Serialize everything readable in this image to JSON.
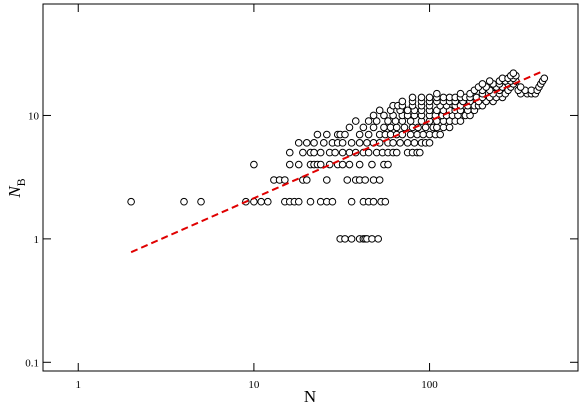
{
  "chart_data": {
    "type": "scatter",
    "xlabel": "N",
    "ylabel": "N",
    "ylabel_sub": "B",
    "xscale": "log",
    "yscale": "log",
    "xlim": [
      0.63,
      700
    ],
    "ylim": [
      0.085,
      80
    ],
    "xticks": [
      1,
      10,
      100
    ],
    "yticks": [
      0.1,
      1,
      10
    ],
    "series": [
      {
        "type": "scatter",
        "color": "#000000",
        "x": [
          31,
          33,
          36,
          40,
          42,
          43,
          44,
          47,
          51,
          2,
          4,
          5,
          9,
          10,
          11,
          12,
          15,
          16,
          17,
          18,
          21,
          24,
          26,
          28,
          36,
          42,
          45,
          48,
          53,
          56,
          13,
          14,
          15,
          19,
          20,
          26,
          34,
          38,
          40,
          43,
          48,
          52,
          10,
          16,
          18,
          21,
          22,
          23,
          24,
          27,
          30,
          32,
          35,
          40,
          47,
          55,
          58,
          16,
          19,
          21,
          22,
          24,
          27,
          29,
          32,
          35,
          38,
          42,
          45,
          50,
          54,
          58,
          62,
          65,
          75,
          80,
          85,
          88,
          18,
          20,
          22,
          25,
          28,
          30,
          32,
          36,
          40,
          44,
          48,
          52,
          58,
          62,
          68,
          75,
          82,
          90,
          95,
          100,
          23,
          26,
          30,
          31,
          33,
          40,
          45,
          52,
          56,
          60,
          65,
          70,
          78,
          85,
          92,
          100,
          108,
          115,
          35,
          42,
          48,
          55,
          60,
          65,
          72,
          80,
          86,
          95,
          105,
          110,
          120,
          130,
          38,
          45,
          50,
          58,
          64,
          70,
          78,
          90,
          100,
          110,
          120,
          130,
          140,
          150,
          48,
          55,
          62,
          70,
          75,
          82,
          90,
          100,
          108,
          118,
          125,
          135,
          145,
          160,
          170,
          52,
          60,
          68,
          75,
          82,
          90,
          100,
          110,
          120,
          130,
          140,
          150,
          165,
          180,
          62,
          66,
          70,
          80,
          90,
          100,
          115,
          125,
          140,
          150,
          165,
          180,
          190,
          200,
          70,
          80,
          90,
          100,
          110,
          120,
          130,
          140,
          155,
          170,
          190,
          210,
          230,
          80,
          90,
          100,
          110,
          120,
          130,
          140,
          150,
          160,
          170,
          185,
          200,
          220,
          240,
          260,
          110,
          150,
          170,
          200,
          230,
          250,
          270,
          330,
          360,
          380,
          400,
          180,
          200,
          220,
          250,
          280,
          320,
          350,
          380,
          410,
          190,
          210,
          240,
          260,
          290,
          330,
          420,
          200,
          230,
          250,
          280,
          300,
          430,
          220,
          250,
          270,
          290,
          310,
          440,
          260,
          280,
          300,
          450,
          290,
          310,
          300
        ],
        "values": [
          1,
          1,
          1,
          1,
          1,
          1,
          1,
          1,
          1,
          2,
          2,
          2,
          2,
          2,
          2,
          2,
          2,
          2,
          2,
          2,
          2,
          2,
          2,
          2,
          2,
          2,
          2,
          2,
          2,
          2,
          3,
          3,
          3,
          3,
          3,
          3,
          3,
          3,
          3,
          3,
          3,
          3,
          4,
          4,
          4,
          4,
          4,
          4,
          4,
          4,
          4,
          4,
          4,
          4,
          4,
          4,
          4,
          5,
          5,
          5,
          5,
          5,
          5,
          5,
          5,
          5,
          5,
          5,
          5,
          5,
          5,
          5,
          5,
          5,
          5,
          5,
          5,
          5,
          6,
          6,
          6,
          6,
          6,
          6,
          6,
          6,
          6,
          6,
          6,
          6,
          6,
          6,
          6,
          6,
          6,
          6,
          6,
          6,
          7,
          7,
          7,
          7,
          7,
          7,
          7,
          7,
          7,
          7,
          7,
          7,
          7,
          7,
          7,
          7,
          7,
          7,
          8,
          8,
          8,
          8,
          8,
          8,
          8,
          8,
          8,
          8,
          8,
          8,
          8,
          8,
          9,
          9,
          9,
          9,
          9,
          9,
          9,
          9,
          9,
          9,
          9,
          9,
          9,
          9,
          10,
          10,
          10,
          10,
          10,
          10,
          10,
          10,
          10,
          10,
          10,
          10,
          10,
          10,
          10,
          11,
          11,
          11,
          11,
          11,
          11,
          11,
          11,
          11,
          11,
          11,
          11,
          11,
          11,
          12,
          12,
          12,
          12,
          12,
          12,
          12,
          12,
          12,
          12,
          12,
          12,
          12,
          12,
          13,
          13,
          13,
          13,
          13,
          13,
          13,
          13,
          13,
          13,
          13,
          13,
          13,
          14,
          14,
          14,
          14,
          14,
          14,
          14,
          14,
          14,
          14,
          14,
          14,
          14,
          14,
          14,
          15,
          15,
          15,
          15,
          15,
          15,
          15,
          15,
          15,
          15,
          15,
          16,
          16,
          16,
          16,
          16,
          16,
          16,
          16,
          16,
          17,
          17,
          17,
          17,
          17,
          17,
          17,
          18,
          18,
          18,
          18,
          18,
          18,
          19,
          19,
          19,
          19,
          19,
          19,
          20,
          20,
          20,
          20,
          21,
          21,
          22
        ]
      },
      {
        "type": "line",
        "color": "#e00000",
        "dash": true,
        "x": [
          2,
          440
        ],
        "values": [
          0.78,
          22.8
        ]
      }
    ]
  }
}
